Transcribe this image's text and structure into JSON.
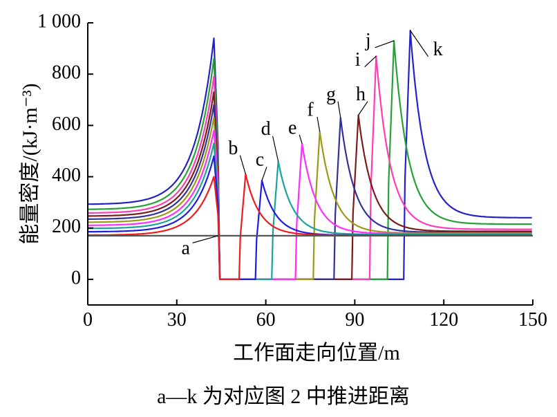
{
  "chart_data": {
    "type": "line",
    "xlabel": "工作面走向位置/m",
    "ylabel": "能量密度/(kJ·m⁻³)",
    "caption": "a—k 为对应图 2 中推进距离",
    "xlim": [
      0,
      150
    ],
    "ylim": [
      -100,
      1000
    ],
    "x_ticks": [
      0,
      30,
      60,
      90,
      120,
      150
    ],
    "x_tick_labels": [
      "0",
      "30",
      "60",
      "90",
      "120",
      "150"
    ],
    "y_ticks": [
      0,
      200,
      400,
      600,
      800,
      1000
    ],
    "y_tick_labels": [
      "0",
      "200",
      "400",
      "600",
      "800",
      "1 000"
    ],
    "grid": false,
    "left_peak_x": 42.5,
    "goaf_start_x": 44.5,
    "series": [
      {
        "name": "a",
        "color": "#555555",
        "pre_base": 170,
        "left_peak": 170,
        "goaf_end": null,
        "right_peak": null,
        "far_value": 170,
        "label_xy": [
          33,
          115
        ]
      },
      {
        "name": "b",
        "color": "#ee1c1c",
        "pre_base": 172,
        "left_peak": 400,
        "goaf_end": 51,
        "right_peak": 410,
        "far_value": 172,
        "label_xy": [
          49,
          505
        ]
      },
      {
        "name": "c",
        "color": "#1d1de0",
        "pre_base": 185,
        "left_peak": 480,
        "goaf_end": 56.5,
        "right_peak": 385,
        "far_value": 172,
        "label_xy": [
          58,
          460
        ]
      },
      {
        "name": "d",
        "color": "#1aa39a",
        "pre_base": 198,
        "left_peak": 530,
        "goaf_end": 62,
        "right_peak": 460,
        "far_value": 175,
        "label_xy": [
          60,
          580
        ]
      },
      {
        "name": "e",
        "color": "#ff2cff",
        "pre_base": 210,
        "left_peak": 580,
        "goaf_end": 70,
        "right_peak": 530,
        "far_value": 178,
        "label_xy": [
          69,
          585
        ]
      },
      {
        "name": "f",
        "color": "#9a9a18",
        "pre_base": 222,
        "left_peak": 630,
        "goaf_end": 76,
        "right_peak": 575,
        "far_value": 180,
        "label_xy": [
          75,
          655
        ]
      },
      {
        "name": "g",
        "color": "#30309a",
        "pre_base": 234,
        "left_peak": 680,
        "goaf_end": 83,
        "right_peak": 630,
        "far_value": 183,
        "label_xy": [
          82,
          715
        ]
      },
      {
        "name": "h",
        "color": "#7a1a1a",
        "pre_base": 246,
        "left_peak": 730,
        "goaf_end": 89,
        "right_peak": 640,
        "far_value": 187,
        "label_xy": [
          92,
          715
        ]
      },
      {
        "name": "i",
        "color": "#ff3cb4",
        "pre_base": 258,
        "left_peak": 790,
        "goaf_end": 95,
        "right_peak": 870,
        "far_value": 195,
        "label_xy": [
          91,
          850
        ]
      },
      {
        "name": "j",
        "color": "#23a236",
        "pre_base": 272,
        "left_peak": 860,
        "goaf_end": 101,
        "right_peak": 930,
        "far_value": 215,
        "label_xy": [
          94.5,
          925
        ]
      },
      {
        "name": "k",
        "color": "#2222c8",
        "pre_base": 292,
        "left_peak": 940,
        "goaf_end": 106.5,
        "right_peak": 970,
        "far_value": 240,
        "label_xy": [
          118,
          890
        ]
      }
    ]
  }
}
